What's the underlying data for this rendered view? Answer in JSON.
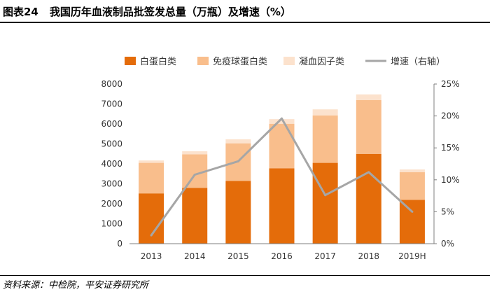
{
  "header": {
    "figure_label": "图表24",
    "title": "我国历年血液制品批签发总量（万瓶）及增速（%）"
  },
  "footer": {
    "source": "资料来源：中检院，平安证券研究所"
  },
  "colors": {
    "albumin": "#E46C0A",
    "immunoglobulin": "#F9BE8C",
    "coagulation": "#FCE2CD",
    "growth": "#A6A6A6"
  },
  "chart_data": {
    "type": "bar",
    "stacked": true,
    "categories": [
      "2013",
      "2014",
      "2015",
      "2016",
      "2017",
      "2018",
      "2019H"
    ],
    "series": [
      {
        "name": "白蛋白类",
        "values": [
          2520,
          2800,
          3150,
          3780,
          4050,
          4500,
          2200
        ]
      },
      {
        "name": "免疫球蛋白类",
        "values": [
          1530,
          1680,
          1880,
          2230,
          2380,
          2700,
          1380
        ]
      },
      {
        "name": "凝血因子类",
        "values": [
          120,
          150,
          200,
          230,
          300,
          280,
          140
        ]
      }
    ],
    "line_series": {
      "name": "增速（右轴）",
      "axis": "right",
      "values": [
        1.3,
        10.8,
        12.9,
        19.6,
        7.6,
        11.2,
        5.0
      ]
    },
    "y_left": {
      "ticks": [
        "0",
        "1000",
        "2000",
        "3000",
        "4000",
        "5000",
        "6000",
        "7000",
        "8000"
      ],
      "min": 0,
      "max": 8000
    },
    "y_right": {
      "ticks": [
        "0%",
        "5%",
        "10%",
        "15%",
        "20%",
        "25%"
      ],
      "min": 0,
      "max": 25
    },
    "legend_position": "top",
    "grid": false
  }
}
